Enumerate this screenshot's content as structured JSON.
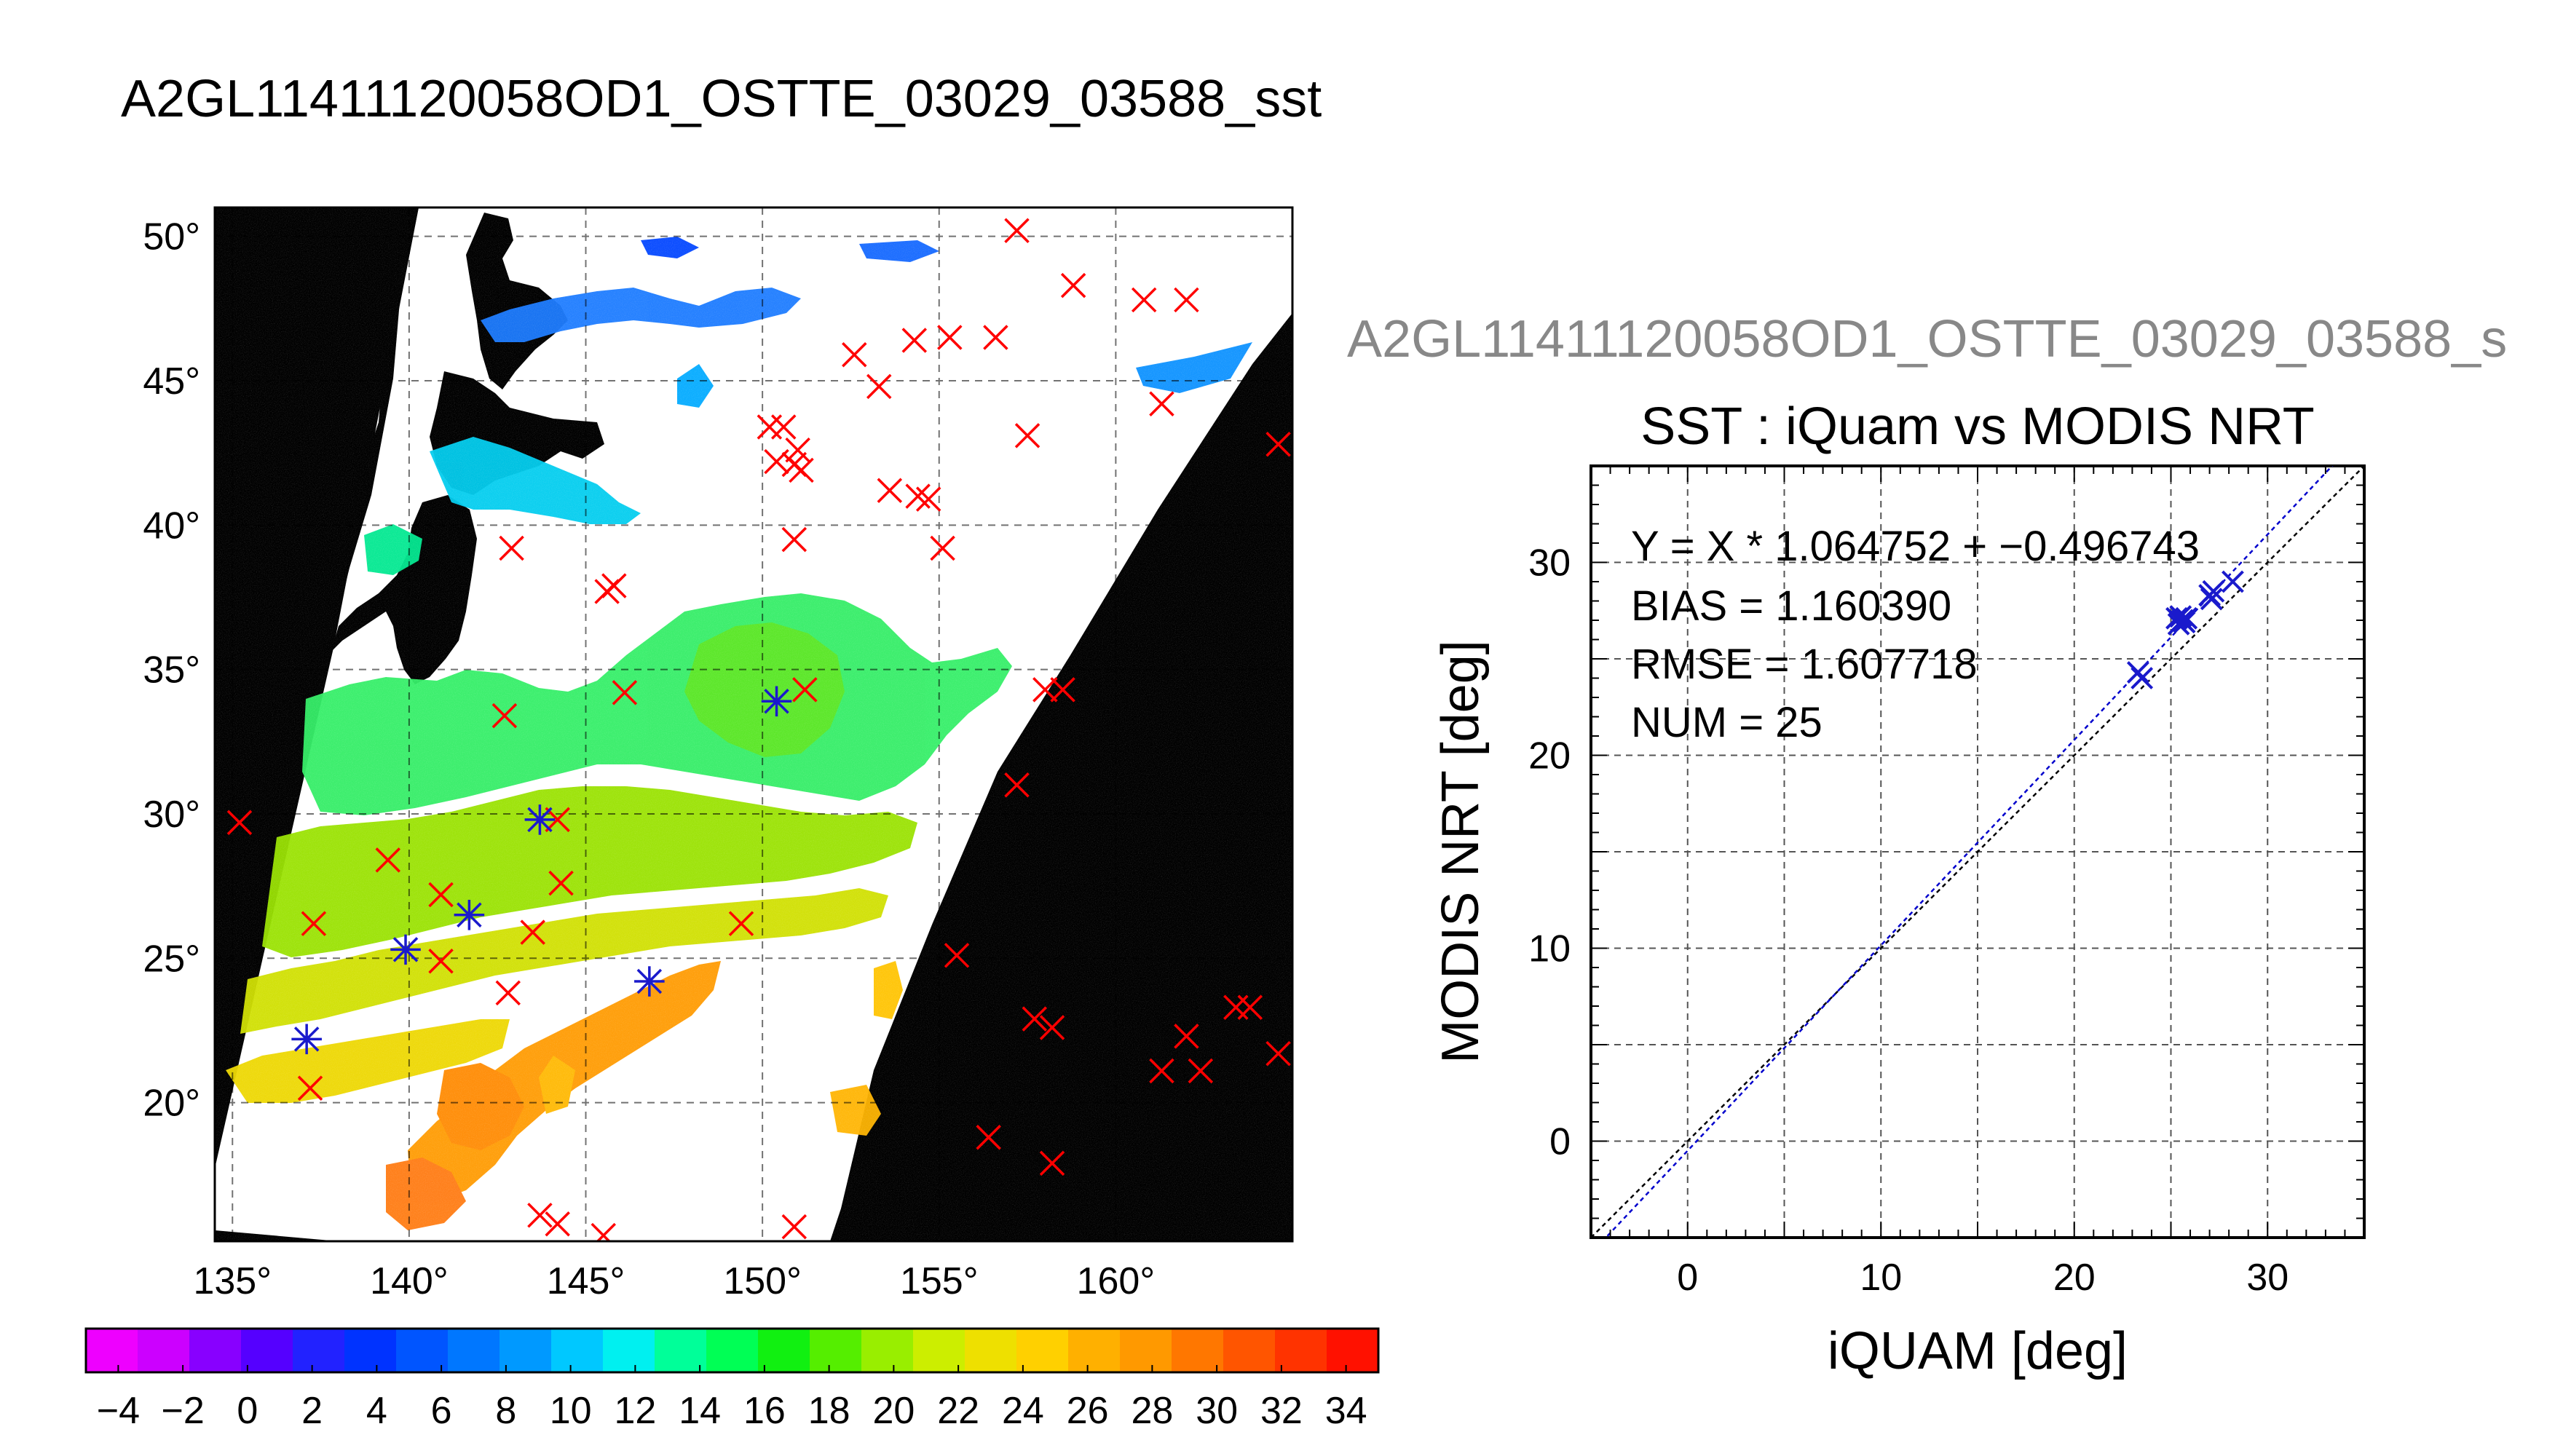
{
  "title": "A2GL11411120058OD1_OSTTE_03029_03588_sst",
  "right_title": "A2GL11411120058OD1_OSTTE_03029_03588_s",
  "colors": {
    "marker_red": "#ff0000",
    "marker_blue": "#1a1acc",
    "fit_line": "#0000cc",
    "land": "#000000",
    "no_data": "#000000"
  },
  "chart_data": [
    {
      "type": "heatmap",
      "description_kind": "sst-map",
      "x_ticks": [
        "135°",
        "140°",
        "145°",
        "150°",
        "155°",
        "160°"
      ],
      "y_ticks": [
        "20°",
        "25°",
        "30°",
        "35°",
        "40°",
        "45°",
        "50°"
      ],
      "xlim": [
        134.5,
        165
      ],
      "ylim": [
        15.2,
        51
      ],
      "grid": true,
      "red_markers": [
        [
          157.2,
          50.2
        ],
        [
          158.8,
          48.3
        ],
        [
          160.8,
          47.8
        ],
        [
          162.0,
          47.8
        ],
        [
          156.6,
          46.5
        ],
        [
          154.3,
          46.4
        ],
        [
          155.3,
          46.5
        ],
        [
          152.6,
          45.9
        ],
        [
          153.3,
          44.8
        ],
        [
          161.3,
          44.2
        ],
        [
          164.6,
          42.8
        ],
        [
          157.5,
          43.1
        ],
        [
          150.2,
          43.4
        ],
        [
          150.6,
          43.4
        ],
        [
          150.4,
          42.2
        ],
        [
          151.0,
          42.6
        ],
        [
          150.9,
          42.1
        ],
        [
          151.1,
          41.9
        ],
        [
          153.6,
          41.2
        ],
        [
          154.4,
          41.0
        ],
        [
          154.7,
          40.9
        ],
        [
          150.9,
          39.5
        ],
        [
          155.1,
          39.2
        ],
        [
          142.9,
          39.2
        ],
        [
          145.6,
          37.7
        ],
        [
          145.8,
          37.9
        ],
        [
          146.1,
          34.2
        ],
        [
          151.2,
          34.3
        ],
        [
          158.0,
          34.3
        ],
        [
          158.5,
          34.3
        ],
        [
          142.7,
          33.4
        ],
        [
          157.2,
          31.0
        ],
        [
          135.2,
          29.7
        ],
        [
          144.2,
          29.8
        ],
        [
          144.3,
          27.6
        ],
        [
          139.4,
          28.4
        ],
        [
          140.9,
          27.2
        ],
        [
          137.3,
          26.2
        ],
        [
          143.5,
          25.9
        ],
        [
          149.4,
          26.2
        ],
        [
          140.9,
          24.9
        ],
        [
          155.5,
          25.1
        ],
        [
          142.8,
          23.8
        ],
        [
          157.7,
          22.9
        ],
        [
          158.2,
          22.6
        ],
        [
          162.0,
          22.3
        ],
        [
          163.4,
          23.3
        ],
        [
          163.8,
          23.3
        ],
        [
          161.3,
          21.1
        ],
        [
          162.4,
          21.1
        ],
        [
          164.6,
          21.7
        ],
        [
          137.2,
          20.5
        ],
        [
          156.4,
          18.8
        ],
        [
          158.2,
          17.9
        ],
        [
          143.7,
          16.1
        ],
        [
          144.2,
          15.8
        ],
        [
          145.5,
          15.4
        ],
        [
          150.9,
          15.7
        ]
      ],
      "blue_markers": [
        [
          137.1,
          22.2
        ],
        [
          139.9,
          25.3
        ],
        [
          141.7,
          26.5
        ],
        [
          143.7,
          29.8
        ],
        [
          146.8,
          24.2
        ],
        [
          150.4,
          33.9
        ]
      ]
    },
    {
      "type": "scatter",
      "title": "SST : iQuam vs MODIS NRT",
      "xlabel": "iQUAM [deg]",
      "ylabel": "MODIS NRT [deg]",
      "xlim": [
        -5,
        35
      ],
      "ylim": [
        -5,
        35
      ],
      "x_ticks": [
        0,
        10,
        20,
        30
      ],
      "y_ticks": [
        0,
        10,
        20,
        30
      ],
      "grid": true,
      "stats": [
        "Y = X * 1.064752 + −0.496743",
        "BIAS = 1.160390",
        "RMSE = 1.607718",
        "NUM = 25"
      ],
      "fit": {
        "slope": 1.064752,
        "intercept": -0.496743
      },
      "points": [
        [
          23.3,
          24.3
        ],
        [
          23.5,
          24.0
        ],
        [
          25.4,
          26.8
        ],
        [
          25.6,
          27.0
        ],
        [
          25.5,
          27.2
        ],
        [
          25.7,
          26.9
        ],
        [
          25.3,
          27.1
        ],
        [
          25.8,
          27.1
        ],
        [
          27.0,
          28.3
        ],
        [
          27.2,
          28.5
        ],
        [
          27.1,
          28.1
        ],
        [
          28.2,
          29.0
        ]
      ]
    }
  ],
  "colorbar": {
    "labels": [
      "−4",
      "−2",
      "0",
      "2",
      "4",
      "6",
      "8",
      "10",
      "12",
      "14",
      "16",
      "18",
      "20",
      "22",
      "24",
      "26",
      "28",
      "30",
      "32",
      "34"
    ],
    "min": -5,
    "max": 35,
    "colors": [
      "#ee00ff",
      "#cc00ff",
      "#8800ff",
      "#5500ff",
      "#2222ff",
      "#0033ff",
      "#0055ff",
      "#0077ff",
      "#0099ff",
      "#00c8ff",
      "#00f0f0",
      "#00ff99",
      "#00ff55",
      "#11f011",
      "#55ee00",
      "#99ee00",
      "#ccee00",
      "#eee000",
      "#ffd000",
      "#ffb000",
      "#ff9900",
      "#ff7700",
      "#ff5500",
      "#ff3300",
      "#ff1100"
    ]
  }
}
